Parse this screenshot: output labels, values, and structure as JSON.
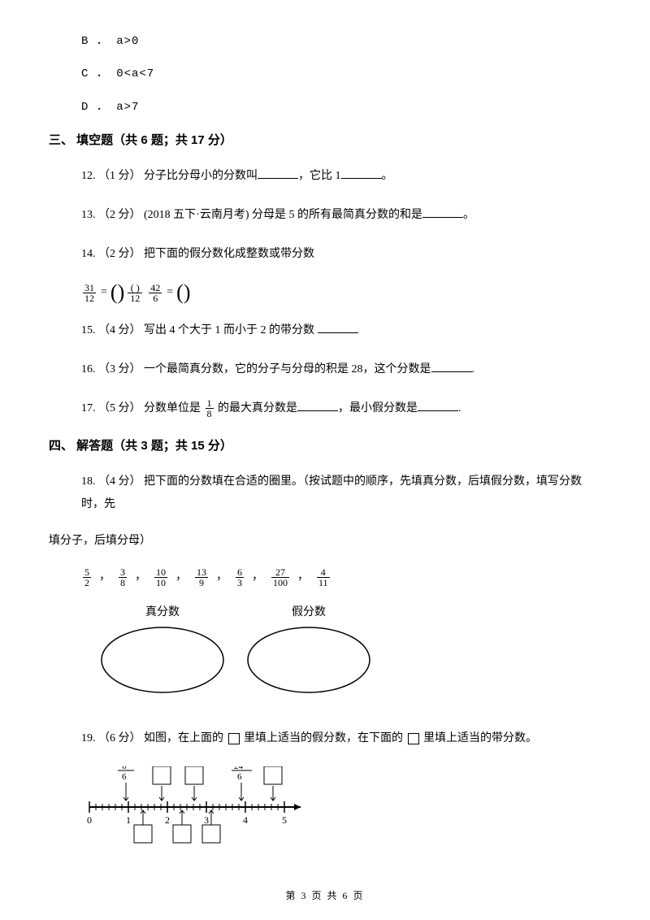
{
  "options": {
    "b": "B ． a>0",
    "c": "C ． 0<a<7",
    "d": "D ． a>7"
  },
  "section3": {
    "title": "三、 填空题（共 6 题；共 17 分）",
    "q12": {
      "prefix": "12. （1 分） 分子比分母小的分数叫",
      "mid": "，它比 1",
      "suffix": "。"
    },
    "q13": {
      "prefix": "13. （2 分） (2018 五下·云南月考) 分母是 5 的所有最简真分数的和是",
      "suffix": "。"
    },
    "q14": "14. （2 分） 把下面的假分数化成整数或带分数",
    "eq14": {
      "f1_num": "31",
      "f1_den": "12",
      "eq1": "=",
      "paren_den": "12",
      "f2_num": "42",
      "f2_den": "6",
      "eq2": "="
    },
    "q15": {
      "prefix": "15. （4 分） 写出 4 个大于 1 而小于 2 的带分数 "
    },
    "q16": {
      "prefix": "16. （3 分） 一个最简真分数，它的分子与分母的积是 28，这个分数是",
      "suffix": "."
    },
    "q17": {
      "prefix": "17. （5 分） 分数单位是 ",
      "frac_num": "1",
      "frac_den": "8",
      "mid1": " 的最大真分数是",
      "mid2": "，最小假分数是",
      "suffix": "."
    }
  },
  "section4": {
    "title": "四、 解答题（共 3 题；共 15 分）",
    "q18_line1": "18. （4 分） 把下面的分数填在合适的圈里。（按试题中的顺序，先填真分数，后填假分数，填写分数时，先",
    "q18_line2": "填分子，后填分母）",
    "fracs": [
      {
        "n": "5",
        "d": "2"
      },
      {
        "n": "3",
        "d": "8"
      },
      {
        "n": "10",
        "d": "10"
      },
      {
        "n": "13",
        "d": "9"
      },
      {
        "n": "6",
        "d": "3"
      },
      {
        "n": "27",
        "d": "100"
      },
      {
        "n": "4",
        "d": "11"
      }
    ],
    "oval_left": "真分数",
    "oval_right": "假分数",
    "q19": {
      "prefix": "19. （6 分） 如图，在上面的 ",
      "mid": " 里填上适当的假分数，在下面的 ",
      "suffix": " 里填上适当的带分数。"
    },
    "nl": {
      "f1_num": "6",
      "f1_den": "6",
      "f2_num": "24",
      "f2_den": "6",
      "ticks": [
        "0",
        "1",
        "2",
        "3",
        "4",
        "5"
      ]
    }
  },
  "footer": "第 3 页 共 6 页"
}
